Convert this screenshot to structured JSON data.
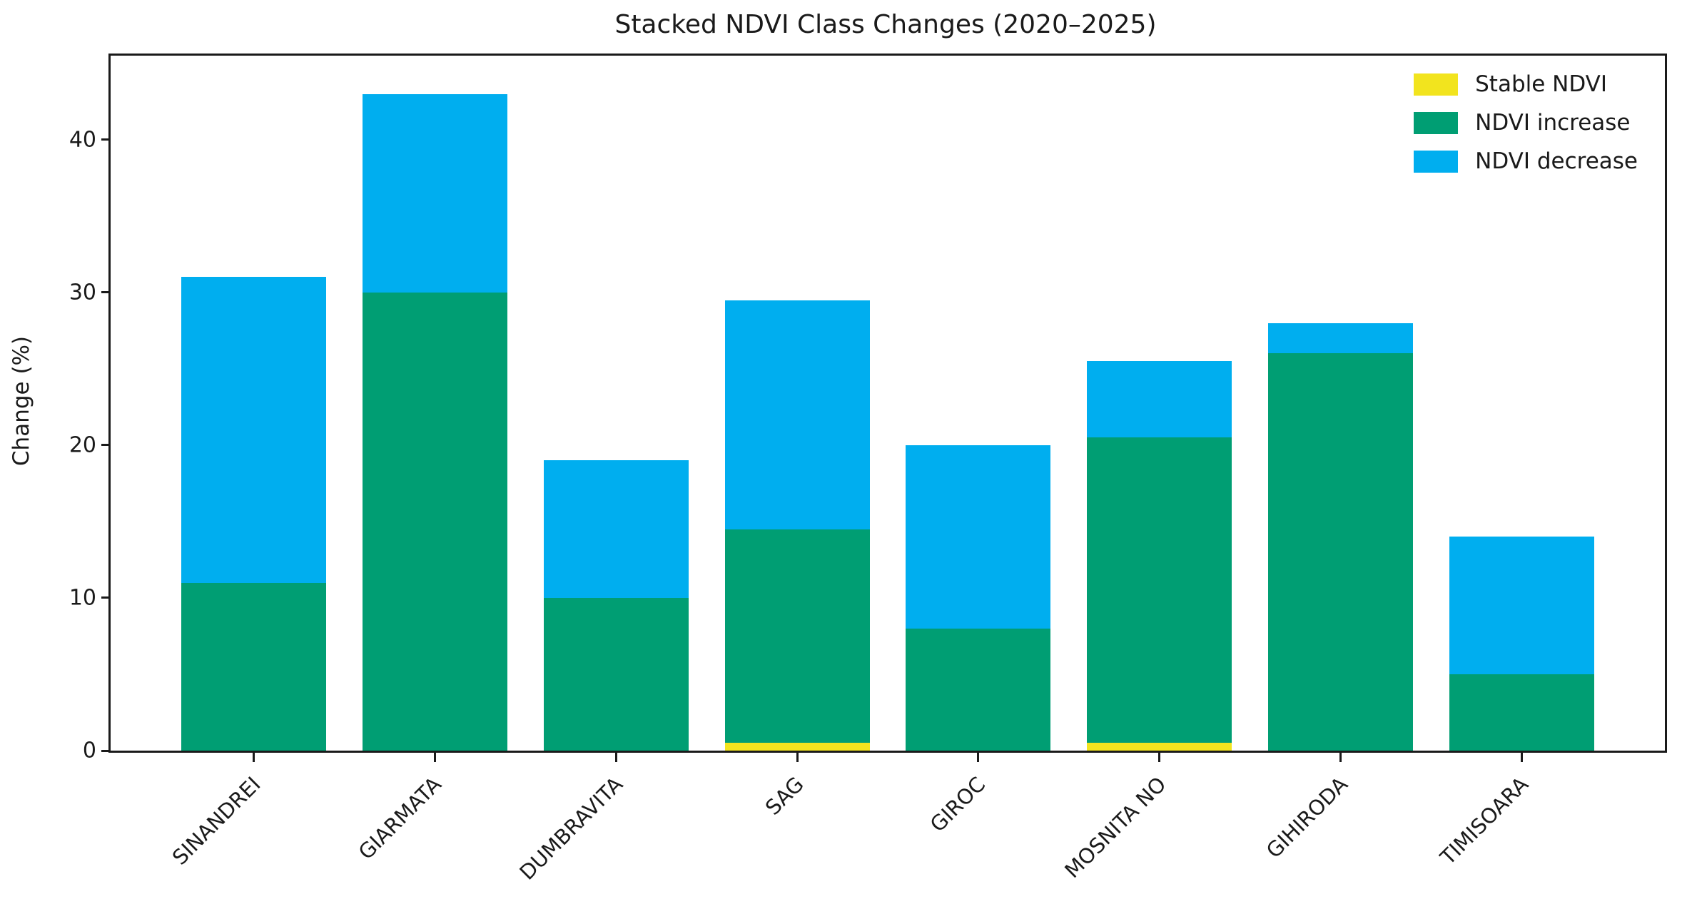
{
  "title": "Stacked NDVI Class Changes (2020–2025)",
  "y_axis": {
    "label": "Change (%)",
    "ticks": [
      0,
      10,
      20,
      30,
      40
    ]
  },
  "legend": {
    "items": [
      {
        "label": "Stable NDVI",
        "color": "#F2E41E"
      },
      {
        "label": "NDVI increase",
        "color": "#009E73"
      },
      {
        "label": "NDVI decrease",
        "color": "#00AEEF"
      }
    ]
  },
  "chart_data": {
    "type": "bar",
    "stacked": true,
    "title": "Stacked NDVI Class Changes (2020–2025)",
    "xlabel": "",
    "ylabel": "Change (%)",
    "categories": [
      "SINANDREI",
      "GIARMATA",
      "DUMBRAVITA",
      "SAG",
      "GIROC",
      "MOSNITA NO",
      "GIHIRODA",
      "TIMISOARA"
    ],
    "series": [
      {
        "name": "Stable NDVI",
        "color": "#F2E41E",
        "values": [
          0,
          0,
          0,
          0.5,
          0,
          0.5,
          0,
          0
        ]
      },
      {
        "name": "NDVI increase",
        "color": "#009E73",
        "values": [
          11,
          30,
          10,
          14,
          8,
          20,
          26,
          5
        ]
      },
      {
        "name": "NDVI decrease",
        "color": "#00AEEF",
        "values": [
          20,
          13,
          9,
          15,
          12,
          5,
          2,
          9
        ]
      }
    ],
    "totals": [
      31,
      43,
      19,
      29.5,
      20,
      25.5,
      28,
      14
    ],
    "ylim": [
      0,
      45.5
    ],
    "xlim": [
      -0.79,
      7.79
    ],
    "bar_width": 0.8,
    "yticks": [
      0,
      10,
      20,
      30,
      40
    ],
    "xtick_rotation_deg": 45,
    "grid": false,
    "legend_position": "upper right"
  }
}
